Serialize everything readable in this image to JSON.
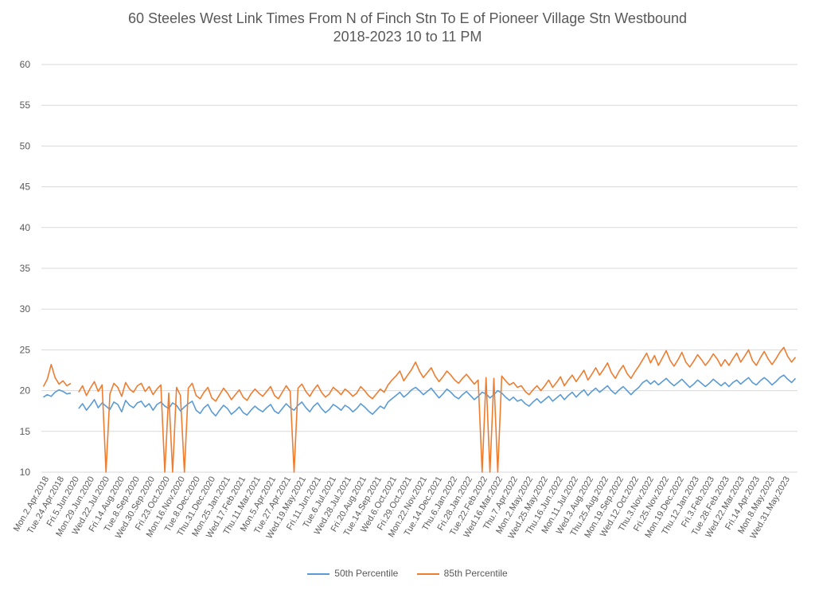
{
  "chart_data": {
    "type": "line",
    "title": "60 Steeles West Link Times From N of Finch Stn To E of Pioneer Village Stn Westbound",
    "subtitle": "2018-2023 10 to 11 PM",
    "xlabel": "",
    "ylabel": "",
    "ylim": [
      10,
      60
    ],
    "y_ticks": [
      10,
      15,
      20,
      25,
      30,
      35,
      40,
      45,
      50,
      55,
      60
    ],
    "grid": true,
    "legend_position": "bottom",
    "x_tick_labels": [
      "Mon.2.Apr.2018",
      "Tue.24.Apr.2018",
      "Fri.5.Jun.2020",
      "Mon.29.Jun.2020",
      "Wed.22.Jul.2020",
      "Fri.14.Aug.2020",
      "Tue.8.Sep.2020",
      "Wed.30.Sep.2020",
      "Fri.23.Oct.2020",
      "Mon.16.Nov.2020",
      "Tue.8.Dec.2020",
      "Thu.31.Dec.2020",
      "Mon.25.Jan.2021",
      "Wed.17.Feb.2021",
      "Thu.11.Mar.2021",
      "Mon.5.Apr.2021",
      "Tue.27.Apr.2021",
      "Wed.19.May.2021",
      "Fri.11.Jun.2021",
      "Tue.6.Jul.2021",
      "Wed.28.Jul.2021",
      "Fri.20.Aug.2021",
      "Tue.14.Sep.2021",
      "Wed.6.Oct.2021",
      "Fri.29.Oct.2021",
      "Mon.22.Nov.2021",
      "Tue.14.Dec.2021",
      "Thu.6.Jan.2022",
      "Fri.28.Jan.2022",
      "Tue.22.Feb.2022",
      "Wed.16.Mar.2022",
      "Thu.7.Apr.2022",
      "Mon.2.May.2022",
      "Wed.25.May.2022",
      "Thu.16.Jun.2022",
      "Mon.11.Jul.2022",
      "Wed.3.Aug.2022",
      "Thu.25.Aug.2022",
      "Mon.19.Sep.2022",
      "Wed.12.Oct.2022",
      "Thu.3.Nov.2022",
      "Fri.25.Nov.2022",
      "Mon.19.Dec.2022",
      "Thu.12.Jan.2023",
      "Fri.3.Feb.2023",
      "Tue.28.Feb.2023",
      "Wed.22.Mar.2023",
      "Fri.14.Apr.2023",
      "Mon.8.May.2023",
      "Wed.31.May.2023"
    ],
    "series": [
      {
        "name": "50th Percentile",
        "color": "#5B9BD5",
        "values": [
          19.2,
          19.5,
          19.3,
          19.8,
          20.1,
          19.9,
          19.6,
          19.7,
          null,
          17.8,
          18.4,
          17.6,
          18.2,
          18.9,
          17.9,
          18.5,
          18.1,
          17.7,
          18.6,
          18.3,
          17.4,
          18.8,
          18.2,
          17.9,
          18.5,
          18.7,
          18.0,
          18.4,
          17.6,
          18.3,
          18.6,
          18.1,
          17.8,
          18.5,
          18.2,
          17.5,
          18.0,
          18.4,
          18.7,
          17.6,
          17.2,
          17.9,
          18.3,
          17.4,
          16.9,
          17.6,
          18.2,
          17.8,
          17.1,
          17.5,
          18.0,
          17.3,
          17.0,
          17.6,
          18.1,
          17.7,
          17.4,
          17.9,
          18.3,
          17.5,
          17.2,
          17.8,
          18.4,
          17.9,
          17.6,
          18.2,
          18.6,
          17.9,
          17.4,
          18.1,
          18.5,
          17.8,
          17.3,
          17.7,
          18.3,
          18.0,
          17.6,
          18.2,
          17.9,
          17.4,
          17.8,
          18.4,
          18.0,
          17.5,
          17.1,
          17.6,
          18.1,
          17.8,
          18.6,
          19.0,
          19.4,
          19.8,
          19.2,
          19.6,
          20.1,
          20.4,
          20.0,
          19.5,
          19.9,
          20.3,
          19.7,
          19.1,
          19.6,
          20.2,
          19.8,
          19.3,
          19.0,
          19.5,
          19.9,
          19.4,
          18.9,
          19.3,
          19.8,
          19.6,
          19.1,
          19.5,
          20.0,
          19.7,
          19.2,
          18.8,
          19.2,
          18.7,
          18.9,
          18.4,
          18.1,
          18.6,
          19.0,
          18.5,
          18.9,
          19.3,
          18.7,
          19.1,
          19.5,
          18.9,
          19.4,
          19.8,
          19.2,
          19.7,
          20.1,
          19.4,
          19.9,
          20.3,
          19.8,
          20.2,
          20.6,
          20.0,
          19.6,
          20.1,
          20.5,
          20.0,
          19.5,
          20.0,
          20.4,
          21.0,
          21.3,
          20.8,
          21.2,
          20.7,
          21.1,
          21.5,
          21.0,
          20.6,
          21.0,
          21.4,
          20.9,
          20.4,
          20.8,
          21.3,
          20.9,
          20.5,
          20.9,
          21.4,
          21.0,
          20.6,
          21.0,
          20.5,
          21.0,
          21.3,
          20.8,
          21.2,
          21.6,
          21.0,
          20.7,
          21.2,
          21.6,
          21.2,
          20.7,
          21.1,
          21.6,
          21.9,
          21.4,
          21.0,
          21.5
        ]
      },
      {
        "name": "85th Percentile",
        "color": "#ED7D31",
        "values": [
          20.5,
          21.4,
          23.2,
          21.6,
          20.8,
          21.2,
          20.6,
          20.9,
          null,
          19.8,
          20.6,
          19.4,
          20.3,
          21.1,
          19.9,
          20.7,
          10,
          19.6,
          20.9,
          20.4,
          19.3,
          21.0,
          20.2,
          19.8,
          20.6,
          20.9,
          19.9,
          20.5,
          19.5,
          20.2,
          20.7,
          10,
          19.7,
          10,
          20.4,
          19.4,
          10,
          20.3,
          20.9,
          19.4,
          19.0,
          19.8,
          20.4,
          19.1,
          18.7,
          19.5,
          20.3,
          19.7,
          18.9,
          19.5,
          20.1,
          19.2,
          18.8,
          19.6,
          20.2,
          19.7,
          19.3,
          19.9,
          20.5,
          19.4,
          19.0,
          19.8,
          20.6,
          19.9,
          10,
          20.3,
          20.8,
          19.9,
          19.3,
          20.1,
          20.7,
          19.8,
          19.2,
          19.6,
          20.4,
          20.0,
          19.5,
          20.2,
          19.8,
          19.3,
          19.7,
          20.5,
          20.0,
          19.4,
          19.0,
          19.6,
          20.2,
          19.8,
          20.7,
          21.3,
          21.8,
          22.4,
          21.2,
          21.9,
          22.6,
          23.5,
          22.4,
          21.6,
          22.2,
          22.8,
          21.8,
          21.1,
          21.7,
          22.4,
          21.9,
          21.3,
          20.9,
          21.5,
          22.0,
          21.4,
          20.8,
          21.3,
          10,
          21.6,
          10,
          21.5,
          10,
          21.8,
          21.2,
          20.7,
          21.0,
          20.4,
          20.6,
          19.9,
          19.5,
          20.1,
          20.6,
          20.0,
          20.6,
          21.3,
          20.4,
          21.0,
          21.7,
          20.6,
          21.3,
          21.9,
          21.1,
          21.8,
          22.5,
          21.3,
          22.0,
          22.8,
          21.9,
          22.6,
          23.4,
          22.2,
          21.5,
          22.4,
          23.1,
          22.1,
          21.5,
          22.3,
          23.0,
          23.8,
          24.6,
          23.4,
          24.3,
          23.1,
          24.0,
          24.9,
          23.7,
          23.0,
          23.8,
          24.7,
          23.5,
          22.9,
          23.6,
          24.4,
          23.8,
          23.1,
          23.7,
          24.5,
          23.9,
          23.0,
          23.8,
          23.1,
          23.9,
          24.6,
          23.5,
          24.2,
          25.0,
          23.7,
          23.1,
          24.0,
          24.8,
          23.9,
          23.2,
          23.9,
          24.7,
          25.3,
          24.2,
          23.5,
          24.1
        ]
      }
    ]
  },
  "legend": {
    "series1_label": "50th Percentile",
    "series2_label": "85th Percentile"
  }
}
